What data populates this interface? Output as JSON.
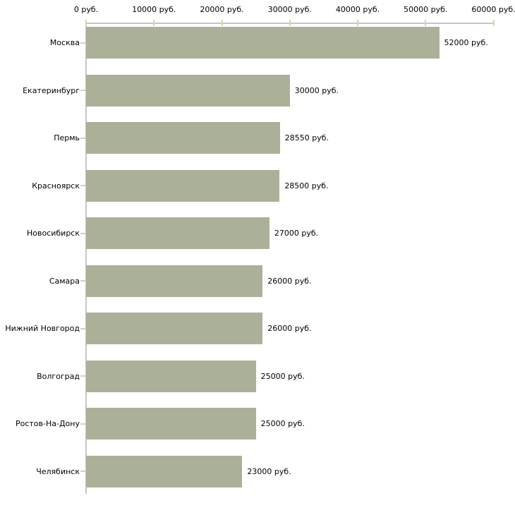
{
  "chart_data": {
    "type": "bar",
    "orientation": "horizontal",
    "title": "",
    "xlabel": "",
    "ylabel": "",
    "unit": "руб.",
    "categories": [
      "Москва",
      "Екатеринбург",
      "Пермь",
      "Красноярск",
      "Новосибирск",
      "Самара",
      "Нижний Новгород",
      "Волгоград",
      "Ростов-На-Дону",
      "Челябинск"
    ],
    "values": [
      52000,
      30000,
      28550,
      28500,
      27000,
      26000,
      26000,
      25000,
      25000,
      23000
    ],
    "value_labels": [
      "52000 руб.",
      "30000 руб.",
      "28550 руб.",
      "28500 руб.",
      "27000 руб.",
      "26000 руб.",
      "26000 руб.",
      "25000 руб.",
      "25000 руб.",
      "23000 руб."
    ],
    "x_axis": {
      "position": "top",
      "min": 0,
      "max": 60000,
      "tick_values": [
        0,
        10000,
        20000,
        30000,
        40000,
        50000,
        60000
      ],
      "tick_labels": [
        "0 руб.",
        "10000 руб.",
        "20000 руб.",
        "30000 руб.",
        "40000 руб.",
        "50000 руб.",
        "60000 руб."
      ]
    },
    "grid": false,
    "legend": false,
    "colors": {
      "bar_fill": "#abb198",
      "axis_line": "#c6c6c6",
      "x_tick_mark": "#d6d6ae",
      "category_tick_mark": "#d8d2b0",
      "label_text": "#000000",
      "background": "#ffffff"
    }
  }
}
